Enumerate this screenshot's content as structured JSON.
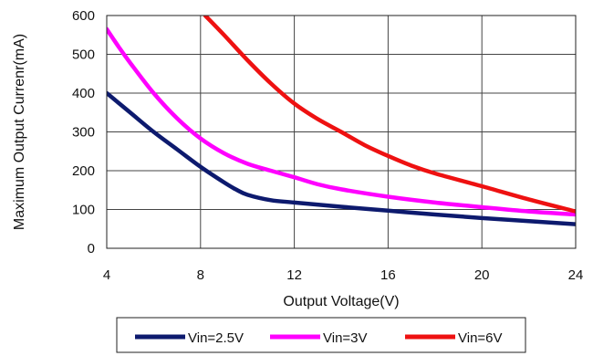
{
  "chart_data": {
    "type": "line",
    "xlabel": "Output Voltage(V)",
    "ylabel": "Maximum Output Currenr(mA)",
    "xlim": [
      4,
      24
    ],
    "ylim": [
      0,
      600
    ],
    "xticks": [
      4,
      8,
      12,
      16,
      20,
      24
    ],
    "yticks": [
      0,
      100,
      200,
      300,
      400,
      500,
      600
    ],
    "grid": true,
    "legend_position": "bottom",
    "series": [
      {
        "name": "Vin=2.5V",
        "color": "#0d1a6e",
        "points": [
          [
            4,
            400
          ],
          [
            5,
            350
          ],
          [
            6,
            300
          ],
          [
            7,
            255
          ],
          [
            8,
            210
          ],
          [
            9,
            170
          ],
          [
            9.5,
            152
          ],
          [
            10,
            138
          ],
          [
            11,
            124
          ],
          [
            12,
            118
          ],
          [
            14,
            107
          ],
          [
            16,
            97
          ],
          [
            18,
            87
          ],
          [
            20,
            78
          ],
          [
            22,
            70
          ],
          [
            24,
            62
          ]
        ]
      },
      {
        "name": "Vin=3V",
        "color": "#ff00ff",
        "points": [
          [
            4,
            565
          ],
          [
            4.5,
            520
          ],
          [
            5,
            478
          ],
          [
            6,
            400
          ],
          [
            7,
            335
          ],
          [
            8,
            283
          ],
          [
            9,
            245
          ],
          [
            10,
            218
          ],
          [
            11,
            200
          ],
          [
            12,
            183
          ],
          [
            13,
            165
          ],
          [
            14,
            152
          ],
          [
            16,
            133
          ],
          [
            18,
            118
          ],
          [
            20,
            106
          ],
          [
            22,
            95
          ],
          [
            24,
            87
          ]
        ]
      },
      {
        "name": "Vin=6V",
        "color": "#ee1111",
        "points": [
          [
            8.2,
            600
          ],
          [
            9,
            550
          ],
          [
            10,
            485
          ],
          [
            11,
            425
          ],
          [
            12,
            373
          ],
          [
            13,
            333
          ],
          [
            14,
            300
          ],
          [
            15,
            266
          ],
          [
            16,
            238
          ],
          [
            17,
            213
          ],
          [
            18,
            193
          ],
          [
            20,
            160
          ],
          [
            22,
            126
          ],
          [
            24,
            95
          ]
        ]
      }
    ]
  }
}
